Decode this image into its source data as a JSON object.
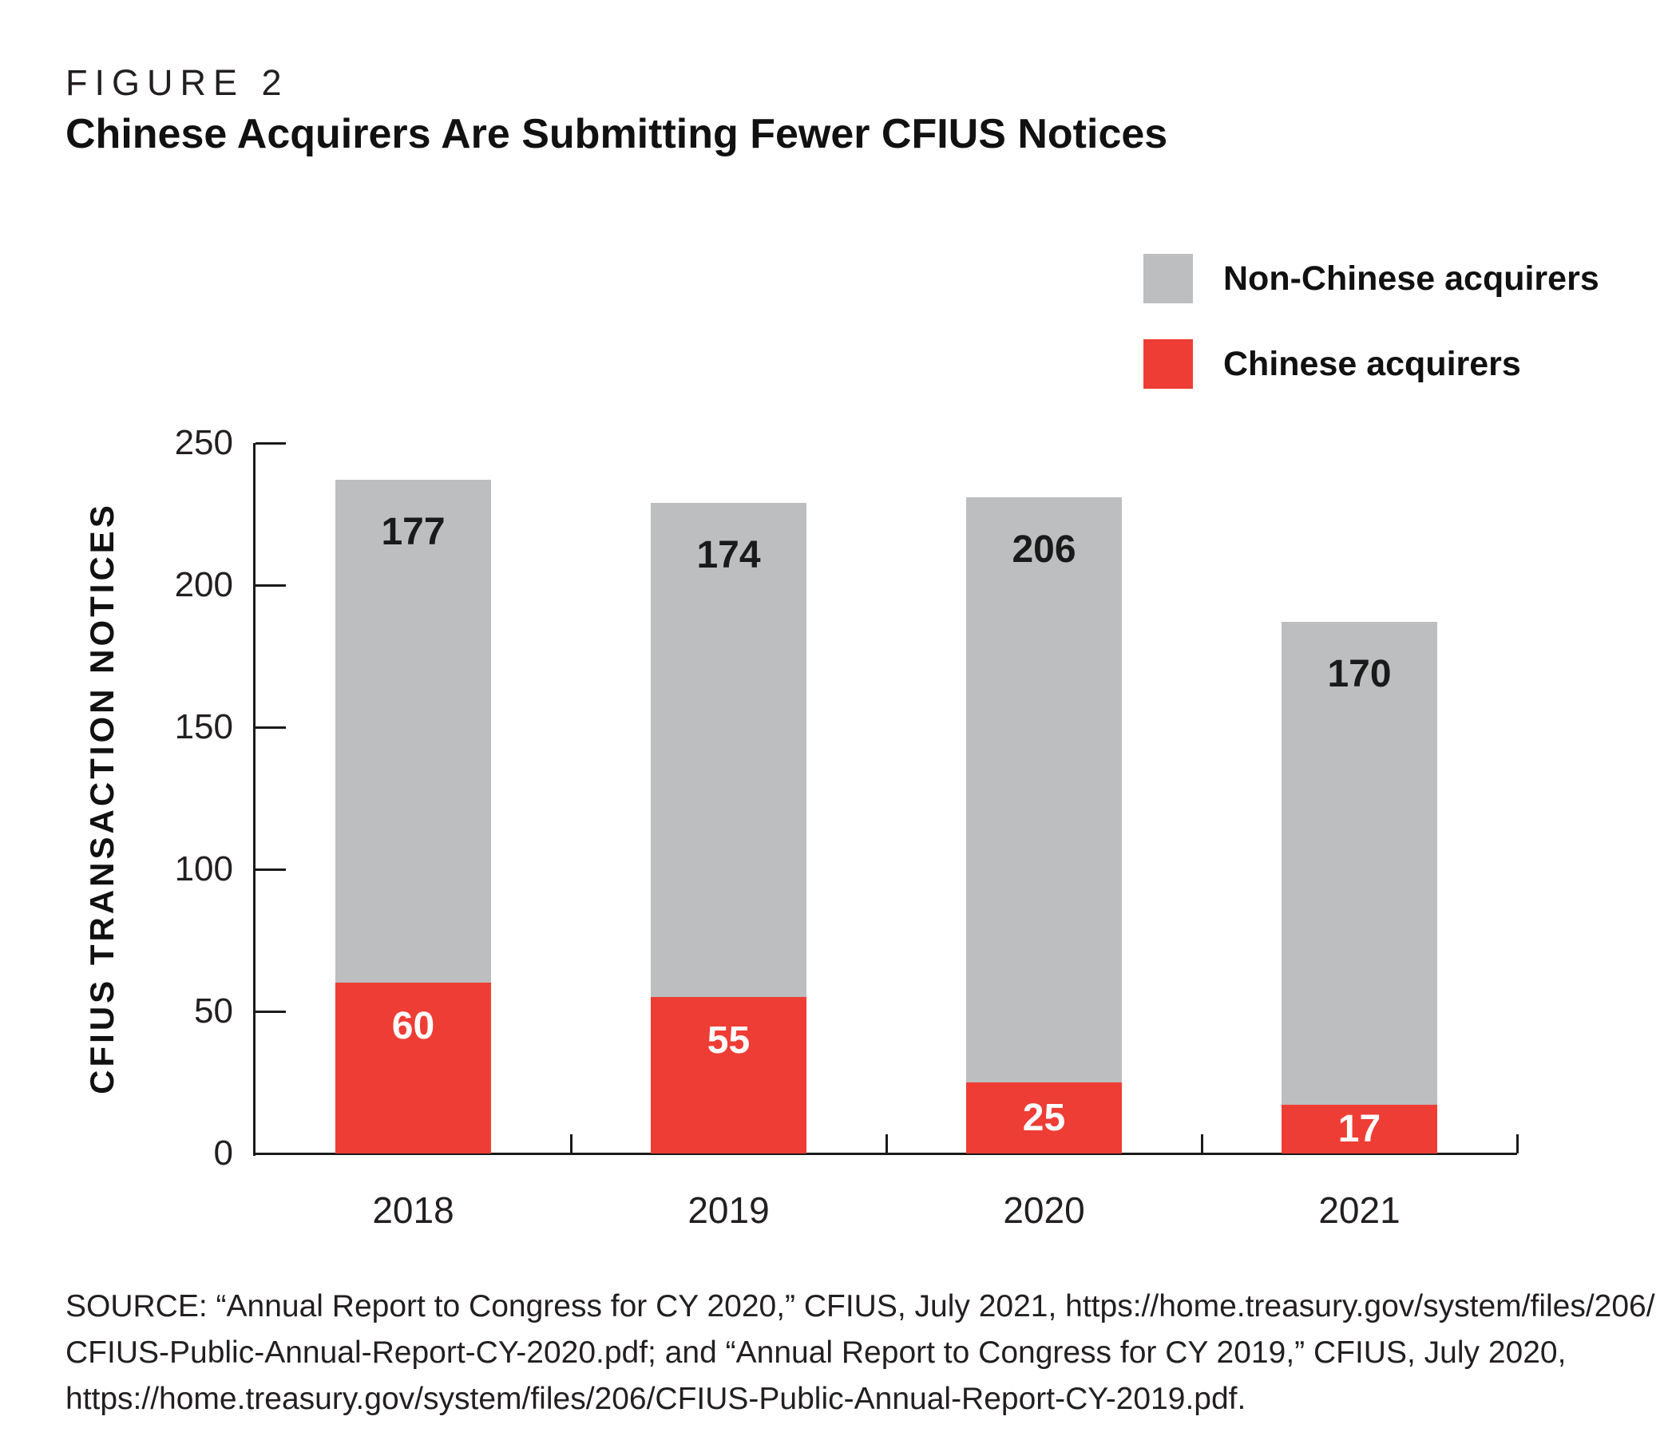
{
  "figure": {
    "label": "FIGURE 2",
    "title": "Chinese Acquirers Are Submitting Fewer CFIUS Notices"
  },
  "legend": [
    {
      "label": "Non-Chinese acquirers",
      "color": "#BCBEC0"
    },
    {
      "label": "Chinese acquirers",
      "color": "#EE3D35"
    }
  ],
  "chart_data": {
    "type": "bar",
    "stacked": true,
    "categories": [
      "2018",
      "2019",
      "2020",
      "2021"
    ],
    "series": [
      {
        "name": "Chinese acquirers",
        "color": "#EE3D35",
        "label_color": "#FFFFFF",
        "values": [
          60,
          55,
          25,
          17
        ]
      },
      {
        "name": "Non-Chinese acquirers",
        "color": "#BCBEC0",
        "label_color": "#1A1A1A",
        "values": [
          177,
          174,
          206,
          170
        ]
      }
    ],
    "title": "Chinese Acquirers Are Submitting Fewer CFIUS Notices",
    "xlabel": "",
    "ylabel": "CFIUS TRANSACTION NOTICES",
    "ylim": [
      0,
      250
    ],
    "yticks": [
      0,
      50,
      100,
      150,
      200,
      250
    ],
    "grid": false,
    "legend_position": "top-right"
  },
  "source": {
    "lines": [
      "SOURCE: “Annual Report to Congress for CY 2020,” CFIUS, July 2021, https://home.treasury.gov/system/files/206/",
      "CFIUS-Public-Annual-Report-CY-2020.pdf; and “Annual Report to Congress for CY 2019,” CFIUS, July 2020,",
      "https://home.treasury.gov/system/files/206/CFIUS-Public-Annual-Report-CY-2019.pdf."
    ]
  }
}
